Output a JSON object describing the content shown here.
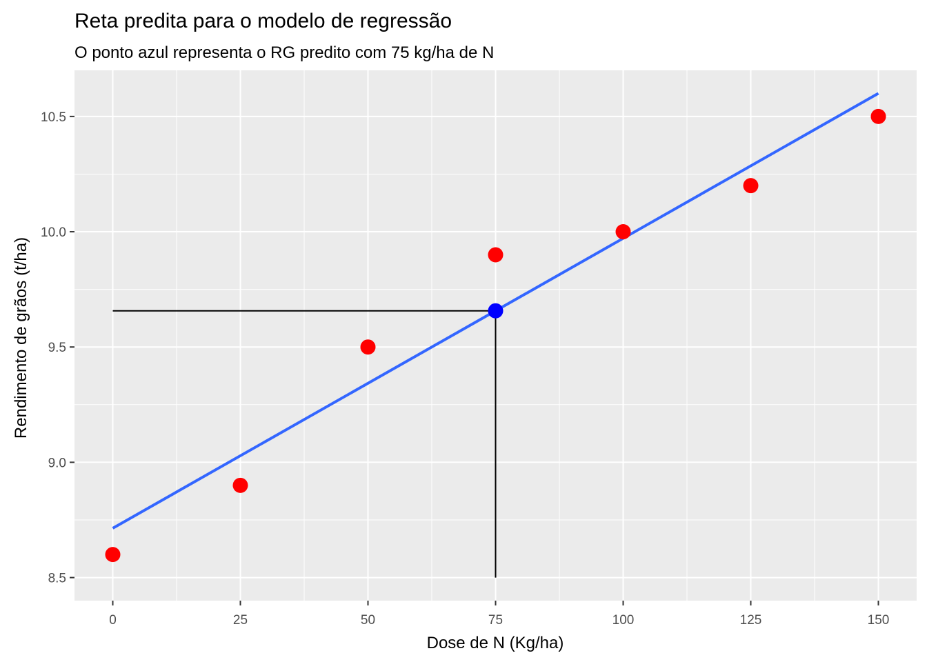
{
  "chart_data": {
    "type": "scatter",
    "title": "Reta predita para o modelo de regressão",
    "subtitle": "O ponto azul representa o RG predito com 75 kg/ha de N",
    "xlabel": "Dose de N (Kg/ha)",
    "ylabel": "Rendimento de grãos (t/ha)",
    "xlim": [
      -7.5,
      157.5
    ],
    "ylim": [
      8.4,
      10.7
    ],
    "x_ticks": [
      0,
      25,
      50,
      75,
      100,
      125,
      150
    ],
    "x_tick_labels": [
      "0",
      "25",
      "50",
      "75",
      "100",
      "125",
      "150"
    ],
    "y_ticks": [
      8.5,
      9.0,
      9.5,
      10.0,
      10.5
    ],
    "y_tick_labels": [
      "8.5",
      "9.0",
      "9.5",
      "10.0",
      "10.5"
    ],
    "grid": true,
    "series": [
      {
        "type": "scatter",
        "color": "#ff0000",
        "x": [
          0,
          25,
          50,
          75,
          100,
          125,
          150
        ],
        "y": [
          8.6,
          8.9,
          9.5,
          9.9,
          10.0,
          10.2,
          10.5
        ]
      },
      {
        "type": "line",
        "color": "#3366ff",
        "x": [
          0,
          150
        ],
        "y": [
          8.714,
          10.6
        ]
      },
      {
        "type": "scatter",
        "color": "#0000ff",
        "x": [
          75
        ],
        "y": [
          9.657
        ]
      }
    ],
    "reference_lines": {
      "color": "#000000",
      "horizontal": {
        "y": 9.657,
        "x_from": 0,
        "x_to": 75
      },
      "vertical": {
        "x": 75,
        "y_from": 8.5,
        "y_to": 9.657
      }
    }
  }
}
